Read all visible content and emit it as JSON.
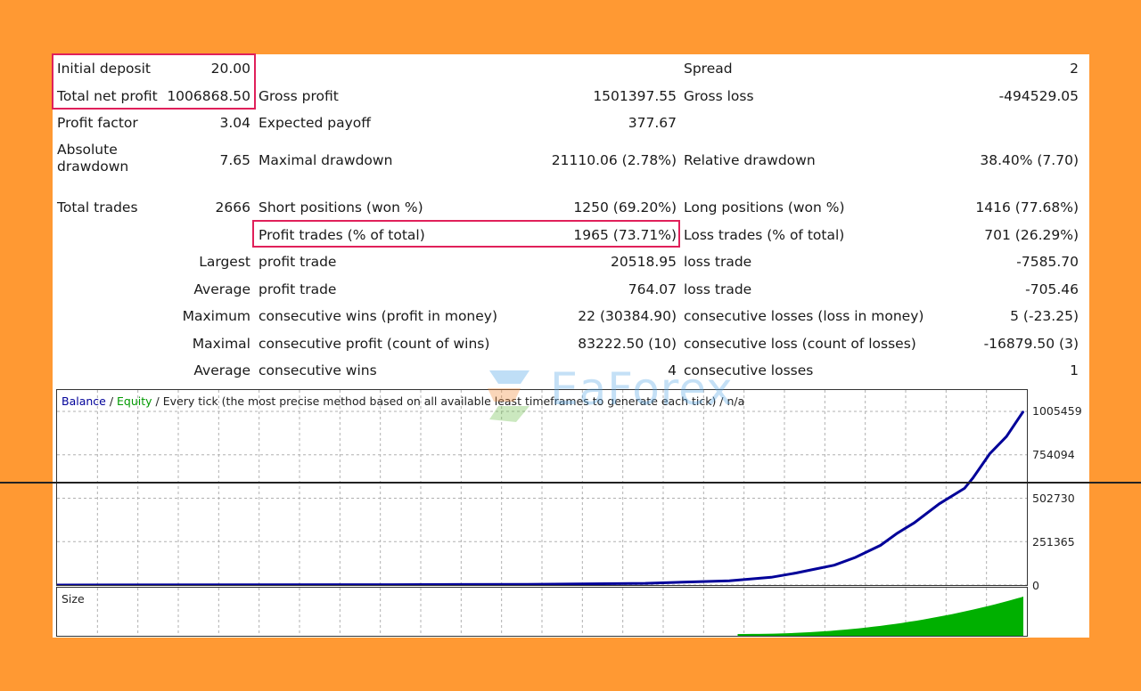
{
  "stats": {
    "initial_deposit": {
      "label": "Initial deposit",
      "value": "20.00"
    },
    "spread": {
      "label": "Spread",
      "value": "2"
    },
    "total_net_profit": {
      "label": "Total net profit",
      "value": "1006868.50"
    },
    "gross_profit": {
      "label": "Gross profit",
      "value": "1501397.55"
    },
    "gross_loss": {
      "label": "Gross loss",
      "value": "-494529.05"
    },
    "profit_factor": {
      "label": "Profit factor",
      "value": "3.04"
    },
    "expected_payoff": {
      "label": "Expected payoff",
      "value": "377.67"
    },
    "absolute_drawdown": {
      "label": "Absolute drawdown",
      "value": "7.65"
    },
    "maximal_drawdown": {
      "label": "Maximal drawdown",
      "value": "21110.06 (2.78%)"
    },
    "relative_drawdown": {
      "label": "Relative drawdown",
      "value": "38.40% (7.70)"
    },
    "total_trades": {
      "label": "Total trades",
      "value": "2666"
    },
    "short_positions": {
      "label": "Short positions (won %)",
      "value": "1250 (69.20%)"
    },
    "long_positions": {
      "label": "Long positions (won %)",
      "value": "1416 (77.68%)"
    },
    "profit_trades": {
      "label": "Profit trades (% of total)",
      "value": "1965 (73.71%)"
    },
    "loss_trades": {
      "label": "Loss trades (% of total)",
      "value": "701 (26.29%)"
    },
    "largest": {
      "prefix": "Largest",
      "profit_label": "profit trade",
      "profit_value": "20518.95",
      "loss_label": "loss trade",
      "loss_value": "-7585.70"
    },
    "average": {
      "prefix": "Average",
      "profit_label": "profit trade",
      "profit_value": "764.07",
      "loss_label": "loss trade",
      "loss_value": "-705.46"
    },
    "maximum": {
      "prefix": "Maximum",
      "profit_label": "consecutive wins (profit in money)",
      "profit_value": "22 (30384.90)",
      "loss_label": "consecutive losses (loss in money)",
      "loss_value": "5 (-23.25)"
    },
    "maximal": {
      "prefix": "Maximal",
      "profit_label": "consecutive profit (count of wins)",
      "profit_value": "83222.50 (10)",
      "loss_label": "consecutive loss (count of losses)",
      "loss_value": "-16879.50 (3)"
    },
    "average_consec": {
      "prefix": "Average",
      "profit_label": "consecutive wins",
      "profit_value": "4",
      "loss_label": "consecutive losses",
      "loss_value": "1"
    }
  },
  "chart": {
    "title_balance": "Balance",
    "title_sep1": " / ",
    "title_equity": "Equity",
    "title_rest": " / Every tick (the most precise method based on all available least timeframes to generate each tick) / n/a",
    "y_ticks": [
      "1005459",
      "754094",
      "502730",
      "251365",
      "0"
    ],
    "colors": {
      "balance": "#000099",
      "equity": "#009900",
      "grid": "#b0b0b0",
      "size": "#00b000"
    }
  },
  "chart_data": {
    "type": "line",
    "title": "Balance / Equity / Every tick (the most precise method based on all available least timeframes to generate each tick) / n/a",
    "ylim": [
      0,
      1005459
    ],
    "y_ticks": [
      0,
      251365,
      502730,
      754094,
      1005459
    ],
    "series": [
      {
        "name": "Balance",
        "x": [
          0,
          200,
          400,
          560,
          700,
          800,
          850,
          880,
          900,
          925,
          950,
          980,
          1000,
          1020,
          1050,
          1080,
          1090,
          1110,
          1130,
          1150
        ],
        "values": [
          20,
          900,
          2000,
          4000,
          10000,
          25000,
          45000,
          70000,
          90000,
          115000,
          160000,
          230000,
          300000,
          360000,
          470000,
          560000,
          620000,
          760000,
          860000,
          1005459
        ]
      }
    ],
    "size_panel": {
      "name": "Size",
      "x_start": 810,
      "x_end": 1150
    }
  },
  "watermark": {
    "text": "EaForex"
  }
}
